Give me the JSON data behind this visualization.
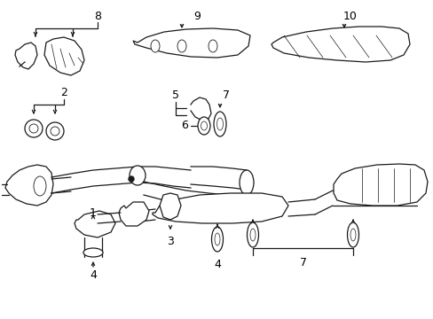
{
  "background": "#ffffff",
  "line_color": "#1a1a1a",
  "figsize": [
    4.89,
    3.6
  ],
  "dpi": 100,
  "xlim": [
    0,
    489
  ],
  "ylim": [
    0,
    360
  ]
}
